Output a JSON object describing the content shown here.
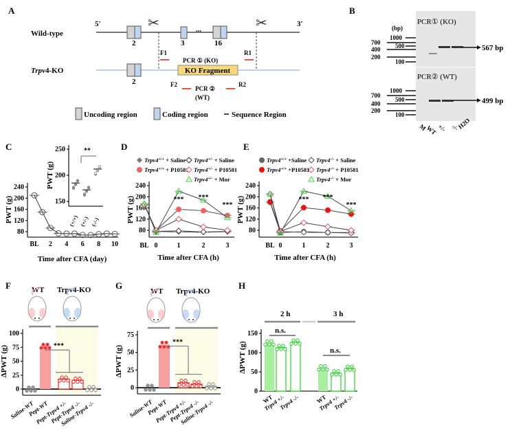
{
  "panels": {
    "A": "A",
    "B": "B",
    "C": "C",
    "D": "D",
    "E": "E",
    "F": "F",
    "G": "G",
    "H": "H"
  },
  "panelA": {
    "five": "5'",
    "three": "3'",
    "wt_label": "Wild-type",
    "ko_gene": "Trpv",
    "ko_suffix": "4-KO",
    "exon2": "2",
    "exon3": "3",
    "dots": "...",
    "exon16": "16",
    "f1": "F1",
    "r1": "R1",
    "f2": "F2",
    "r2": "R2",
    "pcr1": "PCR ① (KO)",
    "pcr2": "PCR ②",
    "pcr2_sub": "(WT)",
    "ko_fragment": "KO Fragment",
    "legend": [
      "Uncoding region",
      "Coding region",
      "Sequence Region"
    ]
  },
  "panelB": {
    "unit": "(bp)",
    "pcr1": "PCR① (KO)",
    "pcr2": "PCR② (WT)",
    "ladder_left": [
      "700",
      "400",
      "200"
    ],
    "ladder_right": [
      "1000",
      "500",
      "100"
    ],
    "band1": "567 bp",
    "band2": "499 bp",
    "lanes": [
      "M",
      "WT",
      "+/-",
      "-/-",
      "H2O"
    ]
  },
  "colors": {
    "grey": "#707070",
    "red": "#f06060",
    "pink": "#e05080",
    "green": "#33dd33",
    "lightgreen": "#a8f0a0",
    "lightred": "#f8a0a0",
    "yellowbg": "#fbfbe6"
  },
  "chart_data": [
    {
      "id": "C",
      "type": "line",
      "ylabel": "PWT (g)",
      "xlabel": "Time after CFA (day)",
      "xticks": [
        "BL",
        "2",
        "4",
        "6",
        "8",
        "10"
      ],
      "ylim": [
        60,
        240
      ],
      "yticks": [
        80,
        120,
        160,
        200,
        240
      ],
      "x": [
        0,
        1,
        2,
        3,
        4,
        5,
        6,
        7,
        8,
        9,
        10
      ],
      "values": [
        210,
        150,
        93,
        74,
        73,
        73,
        68,
        68,
        71,
        73,
        72
      ],
      "inset": {
        "ylabel": "PWT (g)",
        "yticks": [
          150,
          200,
          250
        ],
        "ylim": [
          145,
          250
        ],
        "groups": [
          "(+/+)",
          "(+/-)",
          "(-/-)"
        ],
        "means": [
          185,
          172,
          212
        ],
        "sig": "**"
      }
    },
    {
      "id": "D",
      "type": "line",
      "ylabel": "PWT (g)",
      "xlabel": "Time after CFA (h)",
      "xticks": [
        "BL",
        "0",
        "1",
        "2",
        "3"
      ],
      "ylim": [
        60,
        240
      ],
      "yticks": [
        80,
        120,
        160,
        200,
        240
      ],
      "sig": [
        "***",
        "***",
        "***"
      ],
      "series": [
        {
          "gene": "Trpv4",
          "sup": "+/+",
          "rest": " + Saline",
          "marker": "diamond-filled",
          "color": "#777777",
          "values": [
            175,
            76,
            74,
            73,
            75
          ]
        },
        {
          "gene": "Trpv4",
          "sup": "+/-",
          "rest": " + Saline",
          "marker": "diamond-open",
          "color": "#333333",
          "values": [
            172,
            76,
            78,
            74,
            76
          ]
        },
        {
          "gene": "Trpv4",
          "sup": "+/+",
          "rest": " + P10581",
          "marker": "circle-filled",
          "color": "#f06060",
          "values": [
            170,
            80,
            155,
            150,
            133
          ]
        },
        {
          "gene": "Trpv4",
          "sup": "+/-",
          "rest": " + P10581",
          "marker": "diamond-open",
          "color": "#f06060",
          "values": [
            172,
            80,
            120,
            92,
            80
          ]
        },
        {
          "gene": "Trpv4",
          "sup": "+/-",
          "rest": " + Mor",
          "marker": "triangle-open",
          "color": "#33dd33",
          "values": [
            175,
            72,
            220,
            188,
            125
          ]
        }
      ]
    },
    {
      "id": "E",
      "type": "line",
      "ylabel": "PWT (g)",
      "xlabel": "Time after CFA (h)",
      "xticks": [
        "BL",
        "0",
        "1",
        "2",
        "3"
      ],
      "ylim": [
        60,
        240
      ],
      "yticks": [
        80,
        120,
        160,
        200,
        240
      ],
      "sig": [
        "***",
        "***",
        "***"
      ],
      "series": [
        {
          "gene": "Trpv4",
          "sup": "+/+",
          "rest": " +Saline",
          "marker": "circle-filled",
          "color": "#666666",
          "values": [
            180,
            72,
            75,
            72,
            72
          ]
        },
        {
          "gene": "Trpv4",
          "sup": "-/-",
          "rest": " + Saline",
          "marker": "diamond-open",
          "color": "#555555",
          "values": [
            210,
            75,
            73,
            72,
            70
          ]
        },
        {
          "gene": "Trpv4",
          "sup": "+/+",
          "rest": " +P10581",
          "marker": "circle-filled",
          "color": "#ee1111",
          "values": [
            182,
            78,
            161,
            152,
            138
          ]
        },
        {
          "gene": "Trpv4",
          "sup": "-/-",
          "rest": " + P10581",
          "marker": "diamond-open",
          "color": "#e05080",
          "values": [
            210,
            76,
            107,
            93,
            80
          ]
        },
        {
          "gene": "Trpv4",
          "sup": "-/-",
          "rest": " + Mor",
          "marker": "triangle-open",
          "color": "#33dd33",
          "values": [
            210,
            70,
            220,
            202,
            150
          ]
        }
      ]
    },
    {
      "id": "F",
      "type": "bar",
      "ylabel": "ΔPWT (g)",
      "yticks": [
        0,
        25,
        50,
        75,
        100
      ],
      "ylim": [
        -8,
        115
      ],
      "titles": [
        "WT",
        "Trpv4-KO"
      ],
      "sig": "***",
      "categories": [
        "Saline-WT",
        "Pept-WT",
        "Pept-Trpv4 +/-",
        "Pept-Trpv4 -/-",
        "Saline-Trpv4 -/-"
      ],
      "values": [
        0,
        77,
        18,
        16,
        1
      ]
    },
    {
      "id": "G",
      "type": "bar",
      "ylabel": "ΔPWT (g)",
      "yticks": [
        0,
        25,
        50,
        75
      ],
      "ylim": [
        -8,
        90
      ],
      "titles": [
        "WT",
        "Trpv4-KO"
      ],
      "sig": "***",
      "categories": [
        "Saline-WT",
        "Pept-WT",
        "Pept-Trpv4 +/-",
        "Pept-Trpv4 -/-",
        "Saline-Trpv4 -/-"
      ],
      "values": [
        0,
        61,
        7,
        5,
        2
      ]
    },
    {
      "id": "H",
      "type": "bar",
      "ylabel": "ΔPWT (g)",
      "yticks": [
        0,
        50,
        100,
        150
      ],
      "ylim": [
        0,
        180
      ],
      "groups": [
        "2 h",
        "3 h"
      ],
      "sig": [
        "n.s.",
        "n.s."
      ],
      "categories": [
        "WT",
        "Trpv4 +/-",
        "Trpv4 -/-",
        "WT",
        "Trpv4 +/-",
        "Trpv4 -/-"
      ],
      "values": [
        125,
        113,
        127,
        60,
        47,
        59
      ]
    }
  ]
}
